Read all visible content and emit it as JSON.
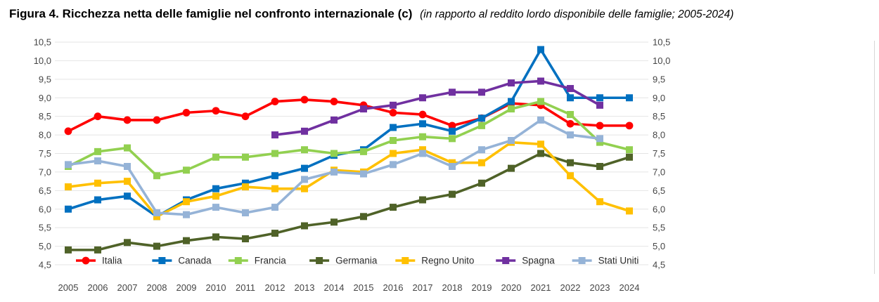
{
  "title": {
    "main": "Figura 4. Ricchezza netta delle famiglie nel confronto internazionale (c)",
    "subtitle": "(in rapporto al reddito lordo disponibile delle famiglie; 2005-2024)"
  },
  "chart_data": {
    "type": "line",
    "x": [
      2005,
      2006,
      2007,
      2008,
      2009,
      2010,
      2011,
      2012,
      2013,
      2014,
      2015,
      2016,
      2017,
      2018,
      2019,
      2020,
      2021,
      2022,
      2023,
      2024
    ],
    "series": [
      {
        "name": "Italia",
        "color": "#FF0000",
        "marker": "circle",
        "values": [
          8.1,
          8.5,
          8.4,
          8.4,
          8.6,
          8.65,
          8.5,
          8.9,
          8.95,
          8.9,
          8.8,
          8.6,
          8.55,
          8.25,
          8.45,
          8.85,
          8.8,
          8.3,
          8.25,
          8.25
        ]
      },
      {
        "name": "Canada",
        "color": "#0070C0",
        "marker": "square",
        "values": [
          6.0,
          6.25,
          6.35,
          5.8,
          6.25,
          6.55,
          6.7,
          6.9,
          7.1,
          7.45,
          7.6,
          8.2,
          8.3,
          8.1,
          8.45,
          8.9,
          10.3,
          9.0,
          9.0,
          9.0
        ]
      },
      {
        "name": "Francia",
        "color": "#92D050",
        "marker": "square",
        "values": [
          7.15,
          7.55,
          7.65,
          6.9,
          7.05,
          7.4,
          7.4,
          7.5,
          7.6,
          7.5,
          7.55,
          7.85,
          7.95,
          7.9,
          8.25,
          8.7,
          8.9,
          8.55,
          7.8,
          7.6
        ]
      },
      {
        "name": "Germania",
        "color": "#4F6228",
        "marker": "square",
        "values": [
          4.9,
          4.9,
          5.1,
          5.0,
          5.15,
          5.25,
          5.2,
          5.35,
          5.55,
          5.65,
          5.8,
          6.05,
          6.25,
          6.4,
          6.7,
          7.1,
          7.5,
          7.25,
          7.15,
          7.4
        ]
      },
      {
        "name": "Regno Unito",
        "color": "#FFC000",
        "marker": "square",
        "values": [
          6.6,
          6.7,
          6.75,
          5.8,
          6.2,
          6.35,
          6.6,
          6.55,
          6.55,
          7.05,
          7.0,
          7.5,
          7.6,
          7.25,
          7.25,
          7.8,
          7.75,
          6.9,
          6.2,
          5.95
        ]
      },
      {
        "name": "Spagna",
        "color": "#7030A0",
        "marker": "square",
        "values": [
          null,
          null,
          null,
          null,
          null,
          null,
          null,
          8.0,
          8.1,
          8.4,
          8.7,
          8.8,
          9.0,
          9.15,
          9.15,
          9.4,
          9.45,
          9.25,
          8.8,
          null
        ]
      },
      {
        "name": "Stati Uniti",
        "color": "#95B3D7",
        "marker": "square",
        "values": [
          7.2,
          7.3,
          7.15,
          5.9,
          5.85,
          6.05,
          5.9,
          6.05,
          6.8,
          7.0,
          6.95,
          7.2,
          7.5,
          7.15,
          7.6,
          7.85,
          8.4,
          8.0,
          7.9,
          null
        ]
      }
    ],
    "ylim": [
      4.5,
      10.5
    ],
    "ytick_step": 0.5,
    "ytick_labels": [
      "4,5",
      "5,0",
      "5,5",
      "6,0",
      "6,5",
      "7,0",
      "7,5",
      "8,0",
      "8,5",
      "9,0",
      "9,5",
      "10,0",
      "10,5"
    ],
    "y_axis_sides": [
      "left",
      "right"
    ],
    "grid": true,
    "legend_position": "bottom-inside",
    "legend_labels": [
      "Italia",
      "Canada",
      "Francia",
      "Germania",
      "Regno Unito",
      "Spagna",
      "Stati Uniti"
    ],
    "decimal_separator": ",",
    "colors": {
      "grid": "#e4e4e4",
      "tick_text": "#454545",
      "legend_text": "#2b2b2b"
    }
  }
}
